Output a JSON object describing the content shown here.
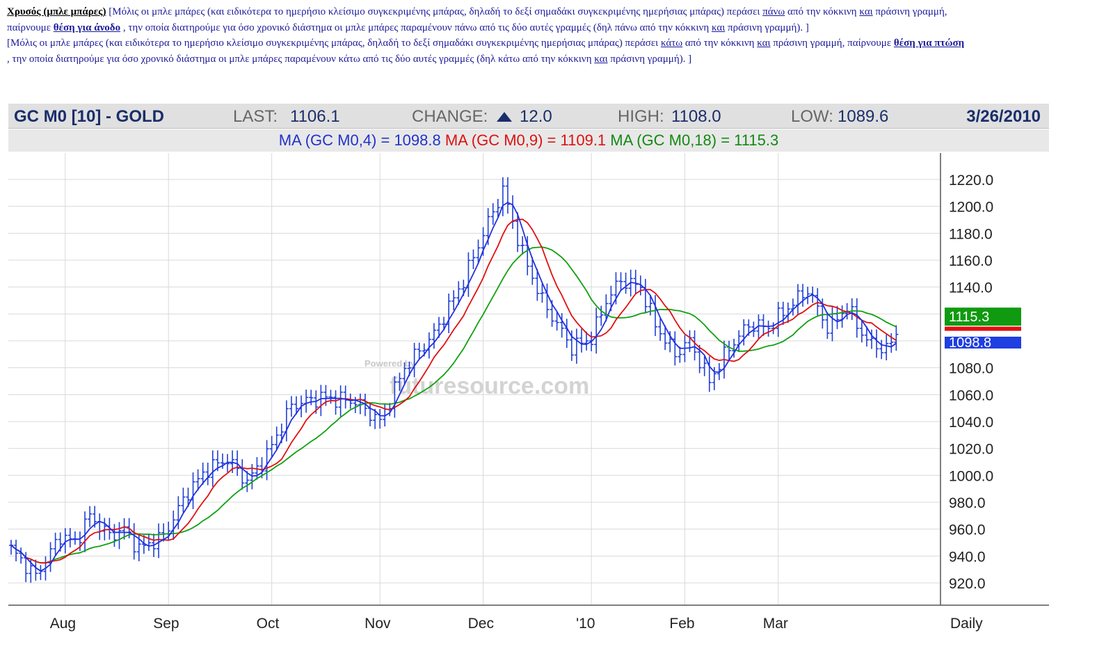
{
  "notes": {
    "p1_title": "Χρυσός (μπλε μπάρες)",
    "p1_a": " [Μόλις οι μπλε μπάρες (και ειδικότερα το ημερήσιο κλείσιμο συγκεκριμένης μπάρας, δηλαδή το δεξί σημαδάκι συγκεκριμένης  ημερήσιας μπάρας) περάσει ",
    "p1_u1": "πάνω",
    "p1_b": " από την κόκκινη ",
    "p1_u2": "και",
    "p1_c": " πράσινη γραμμή, παίρνουμε ",
    "p1_bold": "θέση για άνοδο",
    "p1_d": " , την οποία διατηρούμε για όσο χρονικό διάστημα οι μπλε μπάρες παραμένουν πάνω από τις δύο αυτές γραμμές (δηλ πάνω από την κόκκινη ",
    "p1_u3": "και",
    "p1_e": " πράσινη  γραμμή).  ]",
    "p2_a": "[Μόλις οι μπλε μπάρες (και ειδικότερα το ημερήσιο κλείσιμο συγκεκριμένης μπάρας, δηλαδή το δεξί σημαδάκι συγκεκριμένης  ημερήσιας μπάρας) περάσει ",
    "p2_u1": "κάτω",
    "p2_b": " από την κόκκινη ",
    "p2_u2": "και",
    "p2_c": " πράσινη γραμμή, παίρνουμε ",
    "p2_bold": "θέση για πτώση",
    "p2_d": " , την οποία διατηρούμε για όσο χρονικό διάστημα οι μπλε μπάρες παραμένουν κάτω από τις δύο αυτές γραμμές (δηλ κάτω από την κόκκινη ",
    "p2_u3": "και",
    "p2_e": " πράσινη  γραμμή).  ]"
  },
  "header": {
    "symbol": "GC M0 [10] - GOLD",
    "last_label": "LAST:",
    "last_value": "1106.1",
    "change_label": "CHANGE:",
    "change_value": "12.0",
    "high_label": "HIGH:",
    "high_value": "1108.0",
    "low_label": "LOW:",
    "low_value": "1089.6",
    "date": "3/26/2010"
  },
  "ma_line": {
    "ma4": "MA (GC M0,4) = 1098.8",
    "ma9": "MA (GC M0,9) = 1109.1",
    "ma18": "MA (GC M0,18) = 1115.3"
  },
  "watermark": {
    "small": "Powered by",
    "big": "futuresource.com"
  },
  "colors": {
    "price_bars": "#1f3fd6",
    "ma4": "#2030e0",
    "ma9": "#e01010",
    "ma18": "#10a010",
    "tag_green": "#109a10",
    "tag_red": "#e01010",
    "tag_blue": "#1f3fe0"
  },
  "chart_data": {
    "type": "line",
    "frequency_label": "Daily",
    "y_ticks": [
      920,
      940,
      960,
      980,
      1000,
      1020,
      1040,
      1060,
      1080,
      1100,
      1120,
      1140,
      1160,
      1180,
      1200,
      1220
    ],
    "y_tick_labels": [
      "920.0",
      "940.0",
      "960.0",
      "980.0",
      "1000.0",
      "1020.0",
      "1040.0",
      "1060.0",
      "1080.0",
      "",
      "",
      "1140.0",
      "1160.0",
      "1180.0",
      "1200.0",
      "1220.0"
    ],
    "ylim": [
      900,
      1240
    ],
    "x_tick_labels": [
      "Aug",
      "Sep",
      "Oct",
      "Nov",
      "Dec",
      "'10",
      "Feb",
      "Mar"
    ],
    "x_tick_index": [
      11,
      32,
      53,
      75,
      96,
      118,
      137,
      156
    ],
    "n_days": 190,
    "price_anchors": [
      [
        0,
        945
      ],
      [
        5,
        925
      ],
      [
        10,
        955
      ],
      [
        13,
        950
      ],
      [
        16,
        970
      ],
      [
        20,
        955
      ],
      [
        23,
        960
      ],
      [
        26,
        945
      ],
      [
        31,
        955
      ],
      [
        36,
        988
      ],
      [
        40,
        1005
      ],
      [
        44,
        1012
      ],
      [
        48,
        995
      ],
      [
        52,
        1015
      ],
      [
        57,
        1052
      ],
      [
        63,
        1058
      ],
      [
        70,
        1055
      ],
      [
        75,
        1040
      ],
      [
        80,
        1080
      ],
      [
        86,
        1105
      ],
      [
        92,
        1145
      ],
      [
        96,
        1180
      ],
      [
        100,
        1212
      ],
      [
        104,
        1165
      ],
      [
        108,
        1130
      ],
      [
        114,
        1095
      ],
      [
        118,
        1102
      ],
      [
        121,
        1130
      ],
      [
        124,
        1145
      ],
      [
        128,
        1140
      ],
      [
        131,
        1112
      ],
      [
        135,
        1090
      ],
      [
        138,
        1100
      ],
      [
        142,
        1070
      ],
      [
        146,
        1095
      ],
      [
        150,
        1112
      ],
      [
        154,
        1110
      ],
      [
        158,
        1125
      ],
      [
        162,
        1138
      ],
      [
        166,
        1110
      ],
      [
        170,
        1125
      ],
      [
        174,
        1100
      ],
      [
        178,
        1093
      ],
      [
        180,
        1106
      ]
    ],
    "series": [
      {
        "name": "MA (GC M0,4)",
        "last_value": 1098.8
      },
      {
        "name": "MA (GC M0,9)",
        "last_value": 1109.1
      },
      {
        "name": "MA (GC M0,18)",
        "last_value": 1115.3
      }
    ],
    "last_value_tags": [
      "1115.3",
      "1098.8"
    ]
  }
}
